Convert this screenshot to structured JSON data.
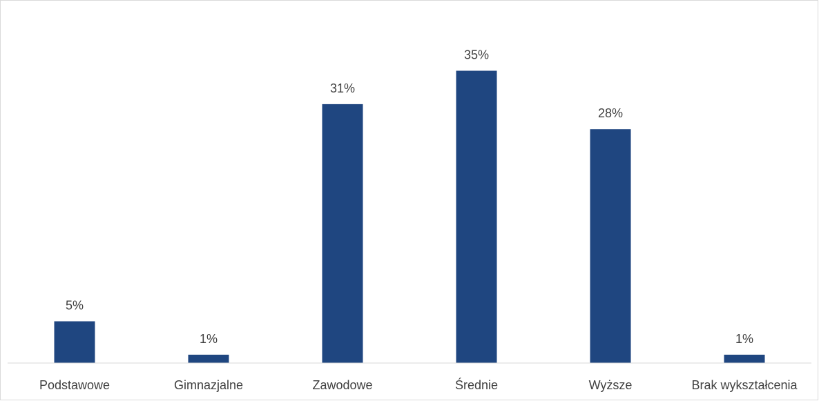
{
  "chart_data": {
    "type": "bar",
    "title": "",
    "xlabel": "",
    "ylabel": "",
    "categories": [
      "Podstawowe",
      "Gimnazjalne",
      "Zawodowe",
      "Średnie",
      "Wyższe",
      "Brak wykształcenia"
    ],
    "values": [
      5,
      1,
      31,
      35,
      28,
      1
    ],
    "data_labels": [
      "5%",
      "1%",
      "31%",
      "35%",
      "28%",
      "1%"
    ],
    "ylim": [
      0,
      40
    ],
    "value_unit": "%",
    "grid": false,
    "legend": "none",
    "bar_color": "#1F4680",
    "axis_color": "#D9D9D9",
    "label_color": "#404040"
  }
}
